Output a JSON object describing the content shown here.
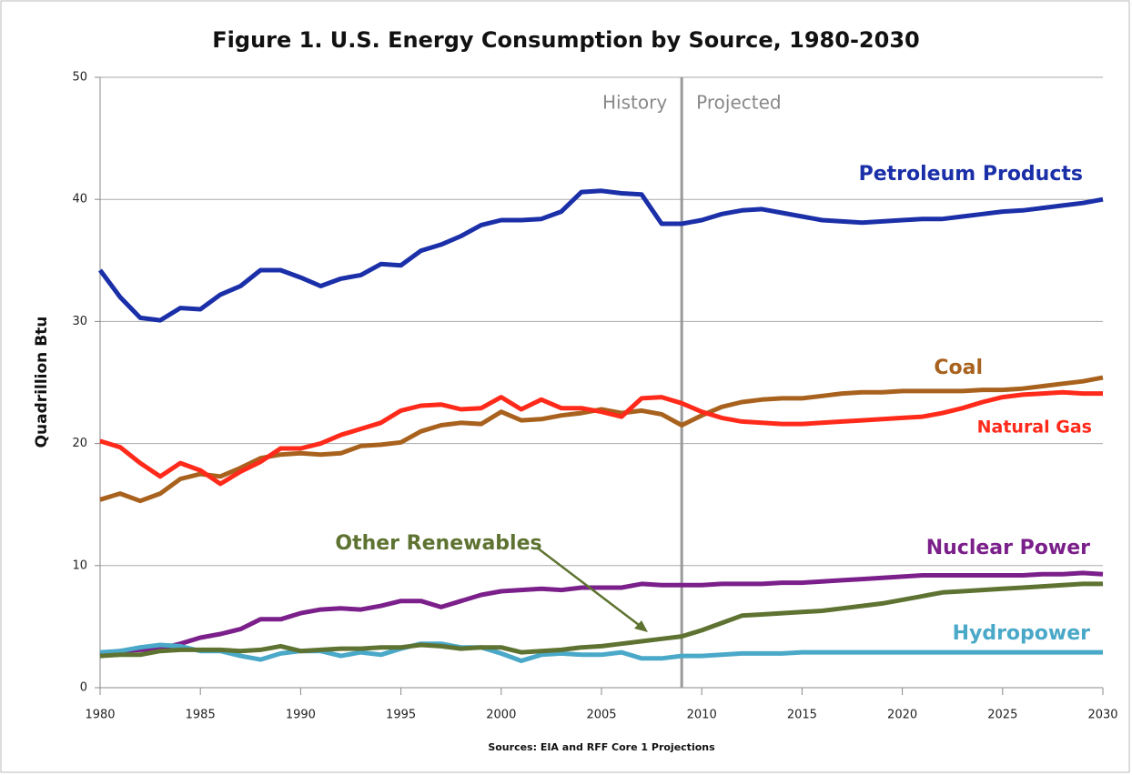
{
  "chart_data": {
    "type": "line",
    "title": "Figure 1. U.S. Energy Consumption by Source, 1980-2030",
    "ylabel": "Quadrillion Btu",
    "source": "Sources: EIA and RFF Core 1 Projections",
    "annotations": [
      "History",
      "Projected"
    ],
    "divider": 2009,
    "x": [
      1980,
      1981,
      1982,
      1983,
      1984,
      1985,
      1986,
      1987,
      1988,
      1989,
      1990,
      1991,
      1992,
      1993,
      1994,
      1995,
      1996,
      1997,
      1998,
      1999,
      2000,
      2001,
      2002,
      2003,
      2004,
      2005,
      2006,
      2007,
      2008,
      2009,
      2010,
      2011,
      2012,
      2013,
      2014,
      2015,
      2016,
      2017,
      2018,
      2019,
      2020,
      2021,
      2022,
      2023,
      2024,
      2025,
      2026,
      2027,
      2028,
      2029,
      2030
    ],
    "xlim": [
      1980,
      2030
    ],
    "xticks": [
      1980,
      1985,
      1990,
      1995,
      2000,
      2005,
      2010,
      2015,
      2020,
      2025,
      2030
    ],
    "ylim": [
      0,
      50
    ],
    "yticks": [
      0,
      10,
      20,
      30,
      40,
      50
    ],
    "grid": true,
    "series": [
      {
        "name": "Petroleum Products",
        "color": "#1a2fa8",
        "values": [
          34.2,
          32.0,
          30.3,
          30.1,
          31.1,
          31.0,
          32.2,
          32.9,
          34.2,
          34.2,
          33.6,
          32.9,
          33.5,
          33.8,
          34.7,
          34.6,
          35.8,
          36.3,
          37.0,
          37.9,
          38.3,
          38.3,
          38.4,
          39.0,
          40.6,
          40.7,
          40.5,
          40.4,
          38.0,
          38.0,
          38.3,
          38.8,
          39.1,
          39.2,
          38.9,
          38.6,
          38.3,
          38.2,
          38.1,
          38.2,
          38.3,
          38.4,
          38.4,
          38.6,
          38.8,
          39.0,
          39.1,
          39.3,
          39.5,
          39.7,
          40.0
        ]
      },
      {
        "name": "Coal",
        "color": "#a8621e",
        "values": [
          15.4,
          15.9,
          15.3,
          15.9,
          17.1,
          17.5,
          17.3,
          18.0,
          18.8,
          19.1,
          19.2,
          19.1,
          19.2,
          19.8,
          19.9,
          20.1,
          21.0,
          21.5,
          21.7,
          21.6,
          22.6,
          21.9,
          22.0,
          22.3,
          22.5,
          22.8,
          22.5,
          22.7,
          22.4,
          21.5,
          22.3,
          23.0,
          23.4,
          23.6,
          23.7,
          23.7,
          23.9,
          24.1,
          24.2,
          24.2,
          24.3,
          24.3,
          24.3,
          24.3,
          24.4,
          24.4,
          24.5,
          24.7,
          24.9,
          25.1,
          25.4
        ]
      },
      {
        "name": "Natural Gas",
        "color": "#ff2a1a",
        "values": [
          20.2,
          19.7,
          18.4,
          17.3,
          18.4,
          17.8,
          16.7,
          17.7,
          18.5,
          19.6,
          19.6,
          20.0,
          20.7,
          21.2,
          21.7,
          22.7,
          23.1,
          23.2,
          22.8,
          22.9,
          23.8,
          22.8,
          23.6,
          22.9,
          22.9,
          22.6,
          22.2,
          23.7,
          23.8,
          23.3,
          22.6,
          22.1,
          21.8,
          21.7,
          21.6,
          21.6,
          21.7,
          21.8,
          21.9,
          22.0,
          22.1,
          22.2,
          22.5,
          22.9,
          23.4,
          23.8,
          24.0,
          24.1,
          24.2,
          24.1,
          24.1
        ]
      },
      {
        "name": "Nuclear Power",
        "color": "#7b1f8a",
        "values": [
          2.7,
          3.0,
          3.1,
          3.2,
          3.6,
          4.1,
          4.4,
          4.8,
          5.6,
          5.6,
          6.1,
          6.4,
          6.5,
          6.4,
          6.7,
          7.1,
          7.1,
          6.6,
          7.1,
          7.6,
          7.9,
          8.0,
          8.1,
          8.0,
          8.2,
          8.2,
          8.2,
          8.5,
          8.4,
          8.4,
          8.4,
          8.5,
          8.5,
          8.5,
          8.6,
          8.6,
          8.7,
          8.8,
          8.9,
          9.0,
          9.1,
          9.2,
          9.2,
          9.2,
          9.2,
          9.2,
          9.2,
          9.3,
          9.3,
          9.4,
          9.3
        ]
      },
      {
        "name": "Hydropower",
        "color": "#4aa8c8",
        "values": [
          2.9,
          3.0,
          3.3,
          3.5,
          3.4,
          3.0,
          3.0,
          2.6,
          2.3,
          2.8,
          3.0,
          3.0,
          2.6,
          2.9,
          2.7,
          3.2,
          3.6,
          3.6,
          3.3,
          3.3,
          2.8,
          2.2,
          2.7,
          2.8,
          2.7,
          2.7,
          2.9,
          2.4,
          2.4,
          2.6,
          2.6,
          2.7,
          2.8,
          2.8,
          2.8,
          2.9,
          2.9,
          2.9,
          2.9,
          2.9,
          2.9,
          2.9,
          2.9,
          2.9,
          2.9,
          2.9,
          2.9,
          2.9,
          2.9,
          2.9,
          2.9
        ]
      },
      {
        "name": "Other Renewables",
        "color": "#5e7331",
        "values": [
          2.6,
          2.7,
          2.7,
          3.0,
          3.1,
          3.1,
          3.1,
          3.0,
          3.1,
          3.4,
          3.0,
          3.1,
          3.2,
          3.2,
          3.3,
          3.3,
          3.5,
          3.4,
          3.2,
          3.3,
          3.3,
          2.9,
          3.0,
          3.1,
          3.3,
          3.4,
          3.6,
          3.8,
          4.0,
          4.2,
          4.7,
          5.3,
          5.9,
          6.0,
          6.1,
          6.2,
          6.3,
          6.5,
          6.7,
          6.9,
          7.2,
          7.5,
          7.8,
          7.9,
          8.0,
          8.1,
          8.2,
          8.3,
          8.4,
          8.5,
          8.5
        ]
      }
    ]
  }
}
